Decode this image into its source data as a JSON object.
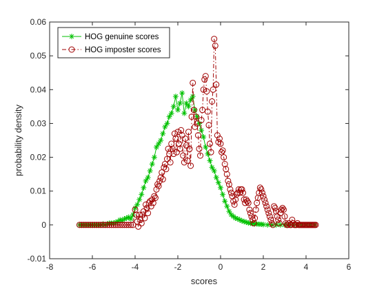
{
  "chart_data": {
    "type": "line",
    "xlabel": "scores",
    "ylabel": "probability density",
    "xlim": [
      -8,
      6
    ],
    "ylim": [
      -0.01,
      0.06
    ],
    "x_ticks": [
      -8,
      -6,
      -4,
      -2,
      0,
      2,
      4,
      6
    ],
    "x_tick_labels": [
      "-8",
      "-6",
      "-4",
      "-2",
      "0",
      "2",
      "4",
      "6"
    ],
    "y_ticks": [
      -0.01,
      0,
      0.01,
      0.02,
      0.03,
      0.04,
      0.05,
      0.06
    ],
    "y_tick_labels": [
      "-0.01",
      "0",
      "0.01",
      "0.02",
      "0.03",
      "0.04",
      "0.05",
      "0.06"
    ],
    "grid": false,
    "legend_position": "top-left",
    "series": [
      {
        "name": "HOG genuine scores",
        "color": "#00c000",
        "line_style": "solid",
        "marker": "asterisk",
        "points": [
          [
            -6.6,
            0.0
          ],
          [
            -6.5,
            0.0
          ],
          [
            -6.4,
            0.0
          ],
          [
            -6.3,
            0.0
          ],
          [
            -6.2,
            0.0
          ],
          [
            -6.1,
            0.0
          ],
          [
            -6.0,
            0.0
          ],
          [
            -5.9,
            0.0
          ],
          [
            -5.8,
            0.0
          ],
          [
            -5.7,
            0.0
          ],
          [
            -5.6,
            0.0
          ],
          [
            -5.5,
            0.0003
          ],
          [
            -5.4,
            0.0
          ],
          [
            -5.3,
            0.0003
          ],
          [
            -5.2,
            0.0005
          ],
          [
            -5.1,
            0.0005
          ],
          [
            -5.0,
            0.0005
          ],
          [
            -4.9,
            0.0008
          ],
          [
            -4.8,
            0.001
          ],
          [
            -4.7,
            0.0015
          ],
          [
            -4.6,
            0.0013
          ],
          [
            -4.5,
            0.0018
          ],
          [
            -4.4,
            0.002
          ],
          [
            -4.3,
            0.0023
          ],
          [
            -4.2,
            0.0018
          ],
          [
            -4.1,
            0.003
          ],
          [
            -4.0,
            0.005
          ],
          [
            -3.9,
            0.006
          ],
          [
            -3.8,
            0.0075
          ],
          [
            -3.7,
            0.009
          ],
          [
            -3.6,
            0.011
          ],
          [
            -3.5,
            0.013
          ],
          [
            -3.4,
            0.014
          ],
          [
            -3.3,
            0.016
          ],
          [
            -3.2,
            0.018
          ],
          [
            -3.1,
            0.02
          ],
          [
            -3.0,
            0.023
          ],
          [
            -2.9,
            0.024
          ],
          [
            -2.8,
            0.025
          ],
          [
            -2.7,
            0.027
          ],
          [
            -2.6,
            0.029
          ],
          [
            -2.5,
            0.03
          ],
          [
            -2.4,
            0.032
          ],
          [
            -2.3,
            0.033
          ],
          [
            -2.2,
            0.035
          ],
          [
            -2.1,
            0.038
          ],
          [
            -2.0,
            0.034
          ],
          [
            -1.9,
            0.036
          ],
          [
            -1.8,
            0.039
          ],
          [
            -1.7,
            0.033
          ],
          [
            -1.6,
            0.036
          ],
          [
            -1.5,
            0.035
          ],
          [
            -1.4,
            0.037
          ],
          [
            -1.3,
            0.038
          ],
          [
            -1.2,
            0.034
          ],
          [
            -1.1,
            0.032
          ],
          [
            -1.0,
            0.03
          ],
          [
            -0.9,
            0.028
          ],
          [
            -0.8,
            0.026
          ],
          [
            -0.7,
            0.023
          ],
          [
            -0.6,
            0.021
          ],
          [
            -0.5,
            0.019
          ],
          [
            -0.4,
            0.017
          ],
          [
            -0.3,
            0.016
          ],
          [
            -0.2,
            0.014
          ],
          [
            -0.1,
            0.0125
          ],
          [
            0.0,
            0.011
          ],
          [
            0.1,
            0.009
          ],
          [
            0.2,
            0.007
          ],
          [
            0.3,
            0.0055
          ],
          [
            0.4,
            0.004
          ],
          [
            0.5,
            0.003
          ],
          [
            0.6,
            0.0025
          ],
          [
            0.7,
            0.002
          ],
          [
            0.8,
            0.0018
          ],
          [
            0.9,
            0.0015
          ],
          [
            1.0,
            0.0012
          ],
          [
            1.1,
            0.001
          ],
          [
            1.2,
            0.0008
          ],
          [
            1.3,
            0.0006
          ],
          [
            1.4,
            0.0005
          ],
          [
            1.5,
            0.0004
          ],
          [
            1.6,
            0.0003
          ],
          [
            1.7,
            0.0003
          ],
          [
            1.8,
            0.0002
          ],
          [
            1.9,
            0.0002
          ],
          [
            2.0,
            0.0001
          ],
          [
            2.2,
            0.0
          ],
          [
            2.4,
            0.0
          ],
          [
            2.6,
            0.0
          ],
          [
            2.8,
            0.0
          ],
          [
            3.0,
            0.0
          ],
          [
            3.2,
            0.0
          ],
          [
            3.4,
            0.0
          ],
          [
            3.6,
            0.0
          ],
          [
            3.8,
            0.0
          ],
          [
            4.0,
            0.0
          ],
          [
            4.2,
            0.0
          ],
          [
            4.4,
            0.0
          ]
        ]
      },
      {
        "name": "HOG imposter scores",
        "color": "#a00000",
        "line_style": "dash-dot",
        "marker": "circle",
        "points": [
          [
            -6.6,
            0.0
          ],
          [
            -6.5,
            0.0
          ],
          [
            -6.4,
            0.0
          ],
          [
            -6.3,
            0.0
          ],
          [
            -6.2,
            0.0
          ],
          [
            -6.1,
            0.0
          ],
          [
            -6.0,
            0.0
          ],
          [
            -5.9,
            0.0
          ],
          [
            -5.8,
            0.0
          ],
          [
            -5.7,
            0.0
          ],
          [
            -5.6,
            0.0
          ],
          [
            -5.5,
            0.0
          ],
          [
            -5.4,
            0.0
          ],
          [
            -5.3,
            0.0
          ],
          [
            -5.2,
            0.0
          ],
          [
            -5.1,
            0.0
          ],
          [
            -5.0,
            0.0
          ],
          [
            -4.9,
            0.0
          ],
          [
            -4.8,
            0.0
          ],
          [
            -4.7,
            0.0
          ],
          [
            -4.6,
            0.0
          ],
          [
            -4.5,
            0.0
          ],
          [
            -4.4,
            0.0
          ],
          [
            -4.3,
            0.0
          ],
          [
            -4.2,
            0.0
          ],
          [
            -4.1,
            0.0
          ],
          [
            -4.0,
            0.0045
          ],
          [
            -3.95,
            0.003
          ],
          [
            -3.9,
            0.001
          ],
          [
            -3.85,
            -0.0005
          ],
          [
            -3.8,
            0.003
          ],
          [
            -3.75,
            0.0015
          ],
          [
            -3.7,
            0.0005
          ],
          [
            -3.65,
            0.003
          ],
          [
            -3.6,
            0.004
          ],
          [
            -3.55,
            0.002
          ],
          [
            -3.5,
            0.006
          ],
          [
            -3.45,
            0.005
          ],
          [
            -3.4,
            0.0035
          ],
          [
            -3.35,
            0.0065
          ],
          [
            -3.3,
            0.007
          ],
          [
            -3.25,
            0.0055
          ],
          [
            -3.2,
            0.0075
          ],
          [
            -3.15,
            0.0065
          ],
          [
            -3.1,
            0.0085
          ],
          [
            -3.05,
            0.008
          ],
          [
            -3.0,
            0.0105
          ],
          [
            -2.95,
            0.012
          ],
          [
            -2.9,
            0.0115
          ],
          [
            -2.85,
            0.013
          ],
          [
            -2.8,
            0.014
          ],
          [
            -2.75,
            0.0155
          ],
          [
            -2.7,
            0.0135
          ],
          [
            -2.65,
            0.017
          ],
          [
            -2.6,
            0.018
          ],
          [
            -2.55,
            0.0165
          ],
          [
            -2.5,
            0.0195
          ],
          [
            -2.45,
            0.0225
          ],
          [
            -2.4,
            0.021
          ],
          [
            -2.35,
            0.0185
          ],
          [
            -2.3,
            0.024
          ],
          [
            -2.25,
            0.0225
          ],
          [
            -2.2,
            0.021
          ],
          [
            -2.15,
            0.027
          ],
          [
            -2.1,
            0.0255
          ],
          [
            -2.05,
            0.0215
          ],
          [
            -2.0,
            0.0275
          ],
          [
            -1.95,
            0.024
          ],
          [
            -1.9,
            0.0225
          ],
          [
            -1.85,
            0.028
          ],
          [
            -1.8,
            0.0265
          ],
          [
            -1.75,
            0.0205
          ],
          [
            -1.7,
            0.0185
          ],
          [
            -1.65,
            0.0255
          ],
          [
            -1.6,
            0.0235
          ],
          [
            -1.55,
            0.019
          ],
          [
            -1.5,
            0.0275
          ],
          [
            -1.45,
            0.0225
          ],
          [
            -1.4,
            0.0175
          ],
          [
            -1.35,
            0.032
          ],
          [
            -1.3,
            0.042
          ],
          [
            -1.25,
            0.034
          ],
          [
            -1.2,
            0.029
          ],
          [
            -1.15,
            0.032
          ],
          [
            -1.1,
            0.03
          ],
          [
            -1.05,
            0.0265
          ],
          [
            -1.0,
            0.0225
          ],
          [
            -0.95,
            0.0205
          ],
          [
            -0.9,
            0.031
          ],
          [
            -0.85,
            0.034
          ],
          [
            -0.8,
            0.04
          ],
          [
            -0.75,
            0.043
          ],
          [
            -0.7,
            0.044
          ],
          [
            -0.65,
            0.0395
          ],
          [
            -0.6,
            0.0335
          ],
          [
            -0.55,
            0.0295
          ],
          [
            -0.5,
            0.024
          ],
          [
            -0.45,
            0.0215
          ],
          [
            -0.4,
            0.0365
          ],
          [
            -0.35,
            0.04
          ],
          [
            -0.3,
            0.055
          ],
          [
            -0.25,
            0.053
          ],
          [
            -0.2,
            0.0415
          ],
          [
            -0.15,
            0.0265
          ],
          [
            -0.1,
            0.0245
          ],
          [
            -0.05,
            0.0255
          ],
          [
            0.0,
            0.024
          ],
          [
            0.05,
            0.0215
          ],
          [
            0.1,
            0.022
          ],
          [
            0.15,
            0.02
          ],
          [
            0.2,
            0.018
          ],
          [
            0.25,
            0.0165
          ],
          [
            0.3,
            0.015
          ],
          [
            0.35,
            0.013
          ],
          [
            0.4,
            0.012
          ],
          [
            0.45,
            0.0105
          ],
          [
            0.5,
            0.0095
          ],
          [
            0.55,
            0.0085
          ],
          [
            0.6,
            0.007
          ],
          [
            0.65,
            0.006
          ],
          [
            0.7,
            0.0075
          ],
          [
            0.75,
            0.009
          ],
          [
            0.8,
            0.0095
          ],
          [
            0.85,
            0.0105
          ],
          [
            0.9,
            0.0095
          ],
          [
            0.95,
            0.0105
          ],
          [
            1.0,
            0.0105
          ],
          [
            1.05,
            0.0095
          ],
          [
            1.1,
            0.0075
          ],
          [
            1.15,
            0.0065
          ],
          [
            1.2,
            0.0075
          ],
          [
            1.25,
            0.007
          ],
          [
            1.3,
            0.0065
          ],
          [
            1.35,
            0.0045
          ],
          [
            1.4,
            0.0035
          ],
          [
            1.45,
            0.0025
          ],
          [
            1.5,
            0.0015
          ],
          [
            1.55,
            0.0005
          ],
          [
            1.6,
            0.002
          ],
          [
            1.65,
            0.0045
          ],
          [
            1.7,
            0.0065
          ],
          [
            1.75,
            0.008
          ],
          [
            1.8,
            0.0095
          ],
          [
            1.85,
            0.011
          ],
          [
            1.9,
            0.0105
          ],
          [
            1.95,
            0.0095
          ],
          [
            2.0,
            0.0085
          ],
          [
            2.05,
            0.0075
          ],
          [
            2.1,
            0.0065
          ],
          [
            2.15,
            0.0055
          ],
          [
            2.2,
            0.0045
          ],
          [
            2.25,
            0.0035
          ],
          [
            2.3,
            0.0025
          ],
          [
            2.35,
            0.0015
          ],
          [
            2.4,
            0.0005
          ],
          [
            2.45,
            0.0
          ],
          [
            2.5,
            0.0055
          ],
          [
            2.55,
            0.005
          ],
          [
            2.6,
            0.004
          ],
          [
            2.65,
            0.0025
          ],
          [
            2.7,
            0.0015
          ],
          [
            2.75,
            0.0005
          ],
          [
            2.8,
            0.0035
          ],
          [
            2.85,
            0.0045
          ],
          [
            2.9,
            0.005
          ],
          [
            2.95,
            0.0045
          ],
          [
            3.0,
            0.0025
          ],
          [
            3.05,
            0.0005
          ],
          [
            3.1,
            0.0
          ],
          [
            3.15,
            0.0
          ],
          [
            3.2,
            0.0005
          ],
          [
            3.25,
            0.0
          ],
          [
            3.3,
            0.0
          ],
          [
            3.35,
            0.0015
          ],
          [
            3.4,
            0.0005
          ],
          [
            3.45,
            0.0
          ],
          [
            3.5,
            0.0
          ],
          [
            3.55,
            0.0
          ],
          [
            3.6,
            0.0005
          ],
          [
            3.65,
            0.0
          ],
          [
            3.7,
            0.0
          ],
          [
            3.75,
            0.0
          ],
          [
            3.8,
            0.0
          ],
          [
            3.85,
            0.0
          ],
          [
            3.9,
            0.0
          ],
          [
            3.95,
            0.0
          ],
          [
            4.0,
            0.0
          ],
          [
            4.05,
            0.0
          ],
          [
            4.1,
            0.0
          ],
          [
            4.15,
            0.0
          ],
          [
            4.2,
            0.0
          ],
          [
            4.25,
            0.0
          ],
          [
            4.3,
            0.0
          ],
          [
            4.35,
            0.0
          ],
          [
            4.4,
            0.0
          ],
          [
            4.45,
            0.0
          ]
        ]
      }
    ]
  }
}
